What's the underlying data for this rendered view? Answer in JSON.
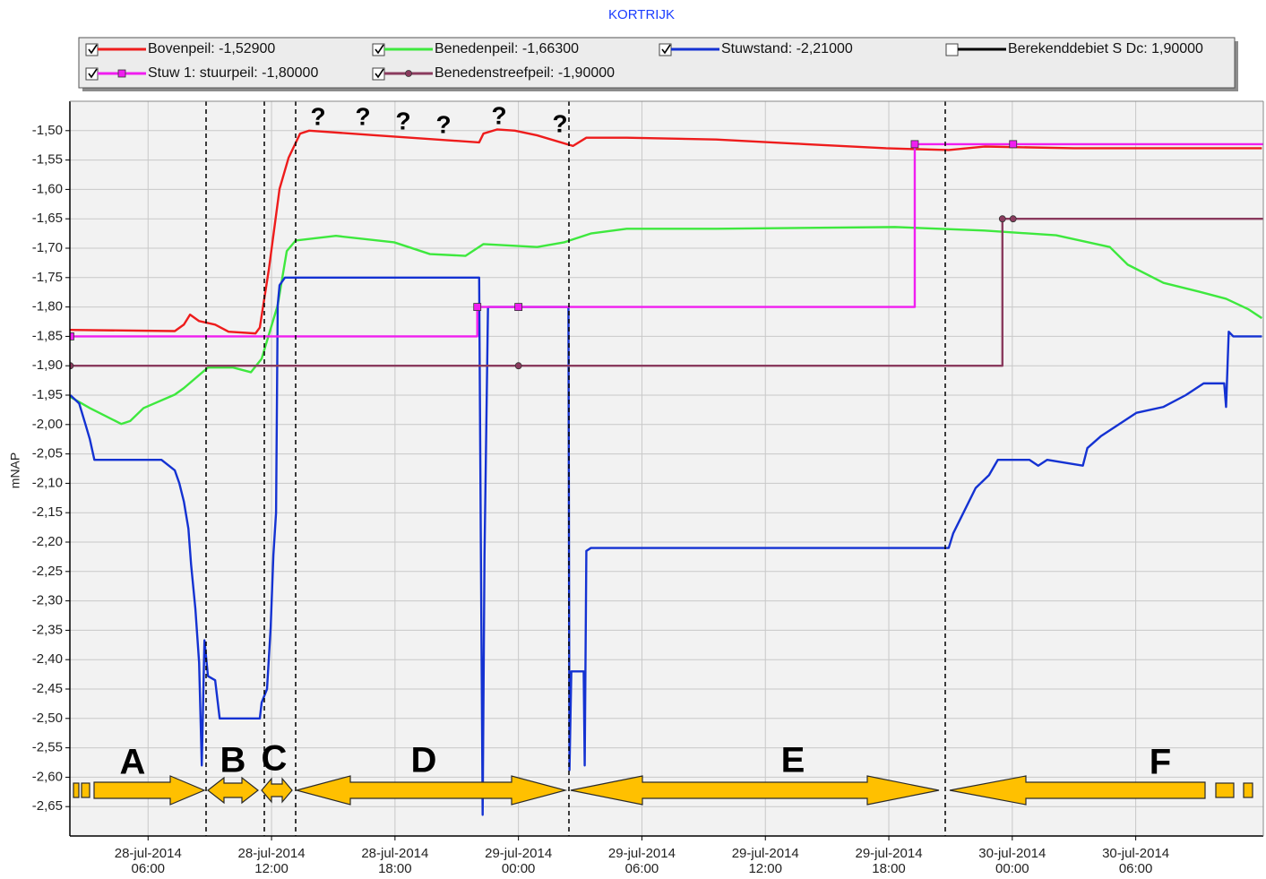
{
  "chart_data": {
    "type": "line",
    "title": "KORTRIJK",
    "y_label": "mNAP",
    "grid": true,
    "xlim": [
      2.2,
      60.2
    ],
    "ylim": [
      -2.7,
      -1.45
    ],
    "xticks": [
      {
        "value": 6,
        "label": "28-jul-2014 06:00"
      },
      {
        "value": 12,
        "label": "28-jul-2014 12:00"
      },
      {
        "value": 18,
        "label": "28-jul-2014 18:00"
      },
      {
        "value": 24,
        "label": "29-jul-2014 00:00"
      },
      {
        "value": 30,
        "label": "29-jul-2014 06:00"
      },
      {
        "value": 36,
        "label": "29-jul-2014 12:00"
      },
      {
        "value": 42,
        "label": "29-jul-2014 18:00"
      },
      {
        "value": 48,
        "label": "30-jul-2014 00:00"
      },
      {
        "value": 54,
        "label": "30-jul-2014 06:00"
      }
    ],
    "yticks": [
      {
        "value": -1.5,
        "label": "-1,50"
      },
      {
        "value": -1.55,
        "label": "-1,55"
      },
      {
        "value": -1.6,
        "label": "-1,60"
      },
      {
        "value": -1.65,
        "label": "-1,65"
      },
      {
        "value": -1.7,
        "label": "-1,70"
      },
      {
        "value": -1.75,
        "label": "-1,75"
      },
      {
        "value": -1.8,
        "label": "-1,80"
      },
      {
        "value": -1.85,
        "label": "-1,85"
      },
      {
        "value": -1.9,
        "label": "-1,90"
      },
      {
        "value": -1.95,
        "label": "-1,95"
      },
      {
        "value": -2.0,
        "label": "-2,00"
      },
      {
        "value": -2.05,
        "label": "-2,05"
      },
      {
        "value": -2.1,
        "label": "-2,10"
      },
      {
        "value": -2.15,
        "label": "-2,15"
      },
      {
        "value": -2.2,
        "label": "-2,20"
      },
      {
        "value": -2.25,
        "label": "-2,25"
      },
      {
        "value": -2.3,
        "label": "-2,30"
      },
      {
        "value": -2.35,
        "label": "-2,35"
      },
      {
        "value": -2.4,
        "label": "-2,40"
      },
      {
        "value": -2.45,
        "label": "-2,45"
      },
      {
        "value": -2.5,
        "label": "-2,50"
      },
      {
        "value": -2.55,
        "label": "-2,55"
      },
      {
        "value": -2.6,
        "label": "-2,60"
      },
      {
        "value": -2.65,
        "label": "-2,65"
      }
    ],
    "series": [
      {
        "name": "Bovenpeil: -1,52900",
        "color": "#ee1c1c",
        "checked": true,
        "step": false,
        "marker": "none",
        "x": [
          2.22,
          7.3,
          7.74,
          8.04,
          8.48,
          9.26,
          9.91,
          11.22,
          11.43,
          11.87,
          12.39,
          12.83,
          13.39,
          13.83,
          17.09,
          22.09,
          22.3,
          22.96,
          23.83,
          24.91,
          26.65,
          27.3,
          29.26,
          33.61,
          37.96,
          41.87,
          44.91,
          46.65,
          51.0,
          60.13
        ],
        "values": [
          -1.839,
          -1.841,
          -1.83,
          -1.813,
          -1.824,
          -1.83,
          -1.842,
          -1.845,
          -1.835,
          -1.736,
          -1.599,
          -1.546,
          -1.505,
          -1.5,
          -1.508,
          -1.52,
          -1.505,
          -1.498,
          -1.5,
          -1.508,
          -1.526,
          -1.512,
          -1.512,
          -1.515,
          -1.523,
          -1.53,
          -1.533,
          -1.527,
          -1.53,
          -1.53
        ]
      },
      {
        "name": "Benedenpeil: -1,66300",
        "color": "#3ee83e",
        "checked": true,
        "step": false,
        "marker": "none",
        "x": [
          2.22,
          3.17,
          4.7,
          5.13,
          5.78,
          7.3,
          7.74,
          8.91,
          10.13,
          11.0,
          11.52,
          12.3,
          12.74,
          13.17,
          15.13,
          17.96,
          19.7,
          21.43,
          22.3,
          24.91,
          26.22,
          27.52,
          29.26,
          33.61,
          42.3,
          46.65,
          50.13,
          52.74,
          53.61,
          55.35,
          57.09,
          58.39,
          59.48,
          60.13
        ],
        "values": [
          -1.953,
          -1.972,
          -1.999,
          -1.994,
          -1.972,
          -1.949,
          -1.938,
          -1.903,
          -1.903,
          -1.911,
          -1.888,
          -1.797,
          -1.705,
          -1.687,
          -1.679,
          -1.69,
          -1.71,
          -1.713,
          -1.693,
          -1.698,
          -1.69,
          -1.675,
          -1.667,
          -1.667,
          -1.664,
          -1.67,
          -1.678,
          -1.698,
          -1.728,
          -1.759,
          -1.774,
          -1.786,
          -1.804,
          -1.819
        ]
      },
      {
        "name": "Stuwstand: -2,21000",
        "color": "#1432d2",
        "checked": true,
        "step": false,
        "marker": "none",
        "x": [
          2.22,
          2.65,
          2.96,
          3.17,
          3.39,
          6.65,
          7.3,
          7.52,
          7.74,
          7.96,
          8.09,
          8.3,
          8.48,
          8.61,
          8.74,
          8.91,
          9.26,
          9.48,
          11.43,
          11.52,
          11.78,
          11.96,
          12.09,
          12.22,
          12.3,
          12.39,
          12.65,
          22.09,
          22.17,
          22.26,
          22.35,
          22.52,
          26.43,
          26.48,
          26.57,
          27.17,
          27.22,
          27.3,
          27.52,
          44.91,
          45.13,
          45.57,
          46.22,
          46.87,
          47.3,
          48.83,
          49.26,
          49.7,
          51.43,
          51.65,
          52.3,
          53.17,
          54.04,
          55.35,
          56.43,
          57.3,
          58.3,
          58.39,
          58.52,
          58.74,
          60.13
        ],
        "values": [
          -1.95,
          -1.964,
          -2.0,
          -2.025,
          -2.06,
          -2.06,
          -2.078,
          -2.1,
          -2.131,
          -2.177,
          -2.238,
          -2.314,
          -2.405,
          -2.58,
          -2.367,
          -2.428,
          -2.435,
          -2.5,
          -2.5,
          -2.473,
          -2.45,
          -2.344,
          -2.222,
          -2.15,
          -1.797,
          -1.763,
          -1.75,
          -1.75,
          -2.192,
          -2.664,
          -2.222,
          -1.8,
          -1.8,
          -2.588,
          -2.42,
          -2.42,
          -2.58,
          -2.215,
          -2.21,
          -2.21,
          -2.185,
          -2.154,
          -2.108,
          -2.086,
          -2.06,
          -2.06,
          -2.07,
          -2.06,
          -2.07,
          -2.04,
          -2.02,
          -2.0,
          -1.98,
          -1.97,
          -1.95,
          -1.93,
          -1.93,
          -1.97,
          -1.842,
          -1.85,
          -1.85
        ]
      },
      {
        "name": "Berekenddebiet S Dc: 1,90000",
        "color": "#000000",
        "checked": false,
        "step": false,
        "marker": "none",
        "x": [],
        "values": []
      },
      {
        "name": "Stuw 1: stuurpeil: -1,80000",
        "color": "#f01ef0",
        "checked": true,
        "step": true,
        "marker": "square",
        "x": [
          2.22,
          22.0,
          24.0,
          43.26,
          48.04
        ],
        "values": [
          -1.85,
          -1.8,
          -1.8,
          -1.523,
          -1.523
        ]
      },
      {
        "name": "Benedenstreefpeil: -1,90000",
        "color": "#8a3b5e",
        "checked": true,
        "step": true,
        "marker": "circle",
        "x": [
          2.22,
          24.0,
          47.52,
          48.04
        ],
        "values": [
          -1.9,
          -1.9,
          -1.65,
          -1.65
        ]
      }
    ],
    "annotations": [
      "?",
      "?",
      "?",
      "?",
      "?",
      "?",
      "A",
      "B",
      "C",
      "D",
      "E",
      "F"
    ]
  }
}
